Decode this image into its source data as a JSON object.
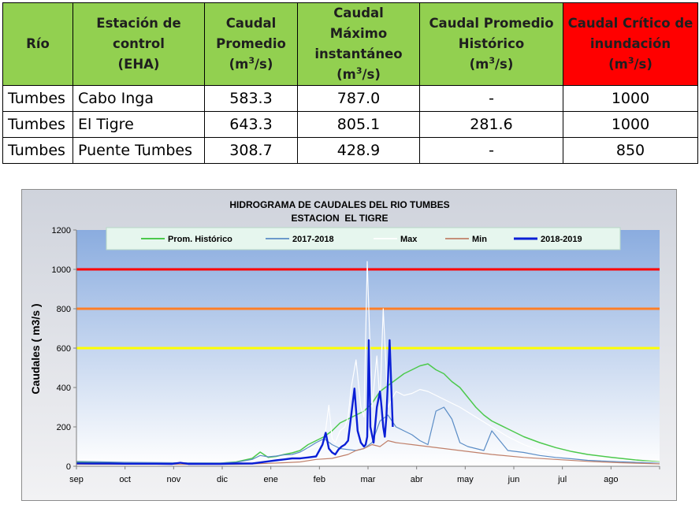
{
  "table": {
    "headers": [
      {
        "lines": [
          "Río"
        ]
      },
      {
        "lines": [
          "Estación de",
          "control",
          "(EHA)"
        ]
      },
      {
        "lines": [
          "Caudal",
          "Promedio"
        ],
        "unit": true
      },
      {
        "lines": [
          "Caudal",
          "Máximo",
          "instantáneo"
        ],
        "unit": true
      },
      {
        "lines": [
          "Caudal Promedio",
          "Histórico"
        ],
        "unit": true
      },
      {
        "lines": [
          "Caudal Crítico de",
          "inundación"
        ],
        "unit": true
      }
    ],
    "unit_prefix": "(m",
    "unit_sup": "3",
    "unit_suffix": "/s)",
    "rows": [
      [
        "Tumbes",
        "Cabo Inga",
        "583.3",
        "787.0",
        "-",
        "1000"
      ],
      [
        "Tumbes",
        "El Tigre",
        "643.3",
        "805.1",
        "281.6",
        "1000"
      ],
      [
        "Tumbes",
        "Puente Tumbes",
        "308.7",
        "428.9",
        "-",
        "850"
      ]
    ],
    "colors": {
      "header_bg": "#92d050",
      "critical_bg": "#ff0000"
    }
  },
  "chart_data": {
    "type": "line",
    "title": "HIDROGRAMA DE CAUDALES DEL RIO TUMBES",
    "subtitle": "ESTACION  EL TIGRE",
    "ylabel": "Caudales ( m3/s )",
    "ylim": [
      0,
      1200
    ],
    "yticks": [
      "0",
      "200",
      "400",
      "600",
      "800",
      "1000",
      "1200"
    ],
    "xlim": [
      0,
      365
    ],
    "months": [
      "sep",
      "oct",
      "nov",
      "dic",
      "ene",
      "feb",
      "mar",
      "abr",
      "may",
      "jun",
      "jul",
      "ago"
    ],
    "grid": false,
    "legend_position": "top",
    "thresholds": [
      {
        "value": 1000,
        "color": "#ff0000"
      },
      {
        "value": 800,
        "color": "#ff7f27"
      },
      {
        "value": 600,
        "color": "#ffff00"
      }
    ],
    "series": [
      {
        "name": "Prom. Histórico",
        "color": "#4cc94c",
        "width": 1.5,
        "x": [
          0,
          30,
          60,
          90,
          100,
          110,
          115,
          120,
          125,
          130,
          135,
          140,
          145,
          150,
          155,
          160,
          165,
          170,
          175,
          180,
          185,
          190,
          195,
          200,
          205,
          210,
          215,
          220,
          225,
          230,
          235,
          240,
          245,
          250,
          255,
          260,
          270,
          280,
          290,
          300,
          310,
          320,
          335,
          350,
          365
        ],
        "values": [
          20,
          17,
          16,
          16,
          22,
          40,
          72,
          45,
          50,
          60,
          68,
          80,
          110,
          130,
          150,
          180,
          220,
          240,
          260,
          280,
          320,
          380,
          410,
          440,
          470,
          490,
          510,
          520,
          490,
          470,
          430,
          400,
          350,
          300,
          260,
          230,
          190,
          150,
          120,
          95,
          75,
          60,
          45,
          32,
          22
        ]
      },
      {
        "name": "2017-2018",
        "color": "#5b8dc6",
        "width": 1.2,
        "x": [
          0,
          30,
          60,
          90,
          100,
          110,
          115,
          120,
          125,
          130,
          135,
          140,
          145,
          150,
          155,
          160,
          165,
          170,
          175,
          180,
          185,
          190,
          195,
          200,
          205,
          210,
          215,
          220,
          225,
          230,
          235,
          240,
          245,
          250,
          255,
          260,
          270,
          280,
          290,
          300,
          310,
          320,
          335,
          350,
          365
        ],
        "values": [
          25,
          20,
          18,
          17,
          20,
          35,
          55,
          48,
          52,
          58,
          60,
          72,
          95,
          120,
          140,
          110,
          90,
          85,
          80,
          90,
          120,
          230,
          260,
          200,
          180,
          160,
          130,
          110,
          280,
          300,
          240,
          120,
          100,
          90,
          80,
          180,
          80,
          70,
          55,
          45,
          38,
          30,
          25,
          20,
          18
        ]
      },
      {
        "name": "Max",
        "color": "#ffffff",
        "width": 1.2,
        "x": [
          0,
          100,
          110,
          120,
          125,
          130,
          135,
          140,
          145,
          150,
          155,
          158,
          160,
          162,
          165,
          168,
          170,
          172,
          175,
          178,
          180,
          182,
          185,
          188,
          190,
          192,
          195,
          198,
          200,
          205,
          210,
          215,
          220,
          225,
          230,
          240,
          250,
          260,
          270,
          280,
          290,
          300,
          320,
          340,
          365
        ],
        "values": [
          15,
          15,
          20,
          30,
          30,
          35,
          45,
          60,
          90,
          100,
          120,
          310,
          140,
          120,
          180,
          200,
          250,
          400,
          540,
          300,
          250,
          1040,
          300,
          560,
          320,
          800,
          300,
          350,
          380,
          360,
          370,
          390,
          380,
          360,
          340,
          300,
          250,
          200,
          150,
          110,
          80,
          60,
          40,
          30,
          20
        ]
      },
      {
        "name": "Min",
        "color": "#c0806a",
        "width": 1.2,
        "x": [
          0,
          100,
          110,
          120,
          130,
          140,
          150,
          160,
          170,
          175,
          180,
          185,
          190,
          195,
          200,
          210,
          220,
          230,
          240,
          260,
          280,
          300,
          320,
          340,
          365
        ],
        "values": [
          10,
          10,
          12,
          15,
          18,
          22,
          35,
          40,
          60,
          80,
          90,
          110,
          100,
          130,
          120,
          110,
          100,
          90,
          80,
          60,
          45,
          35,
          25,
          18,
          12
        ]
      },
      {
        "name": "2018-2019",
        "color": "#0a1fd6",
        "width": 2.4,
        "x": [
          0,
          10,
          20,
          30,
          40,
          50,
          60,
          65,
          70,
          80,
          90,
          100,
          110,
          120,
          125,
          130,
          135,
          140,
          145,
          150,
          152,
          154,
          156,
          158,
          160,
          162,
          164,
          166,
          168,
          170,
          172,
          174,
          176,
          178,
          180,
          181,
          182,
          183,
          184,
          186,
          188,
          190,
          191,
          192,
          193,
          194,
          196,
          198
        ],
        "values": [
          15,
          14,
          14,
          13,
          13,
          13,
          12,
          18,
          12,
          12,
          12,
          14,
          14,
          25,
          30,
          35,
          40,
          40,
          45,
          50,
          80,
          110,
          170,
          90,
          70,
          60,
          85,
          100,
          110,
          130,
          260,
          395,
          180,
          120,
          100,
          110,
          150,
          640,
          200,
          120,
          300,
          380,
          300,
          200,
          150,
          250,
          640,
          200
        ]
      }
    ]
  }
}
